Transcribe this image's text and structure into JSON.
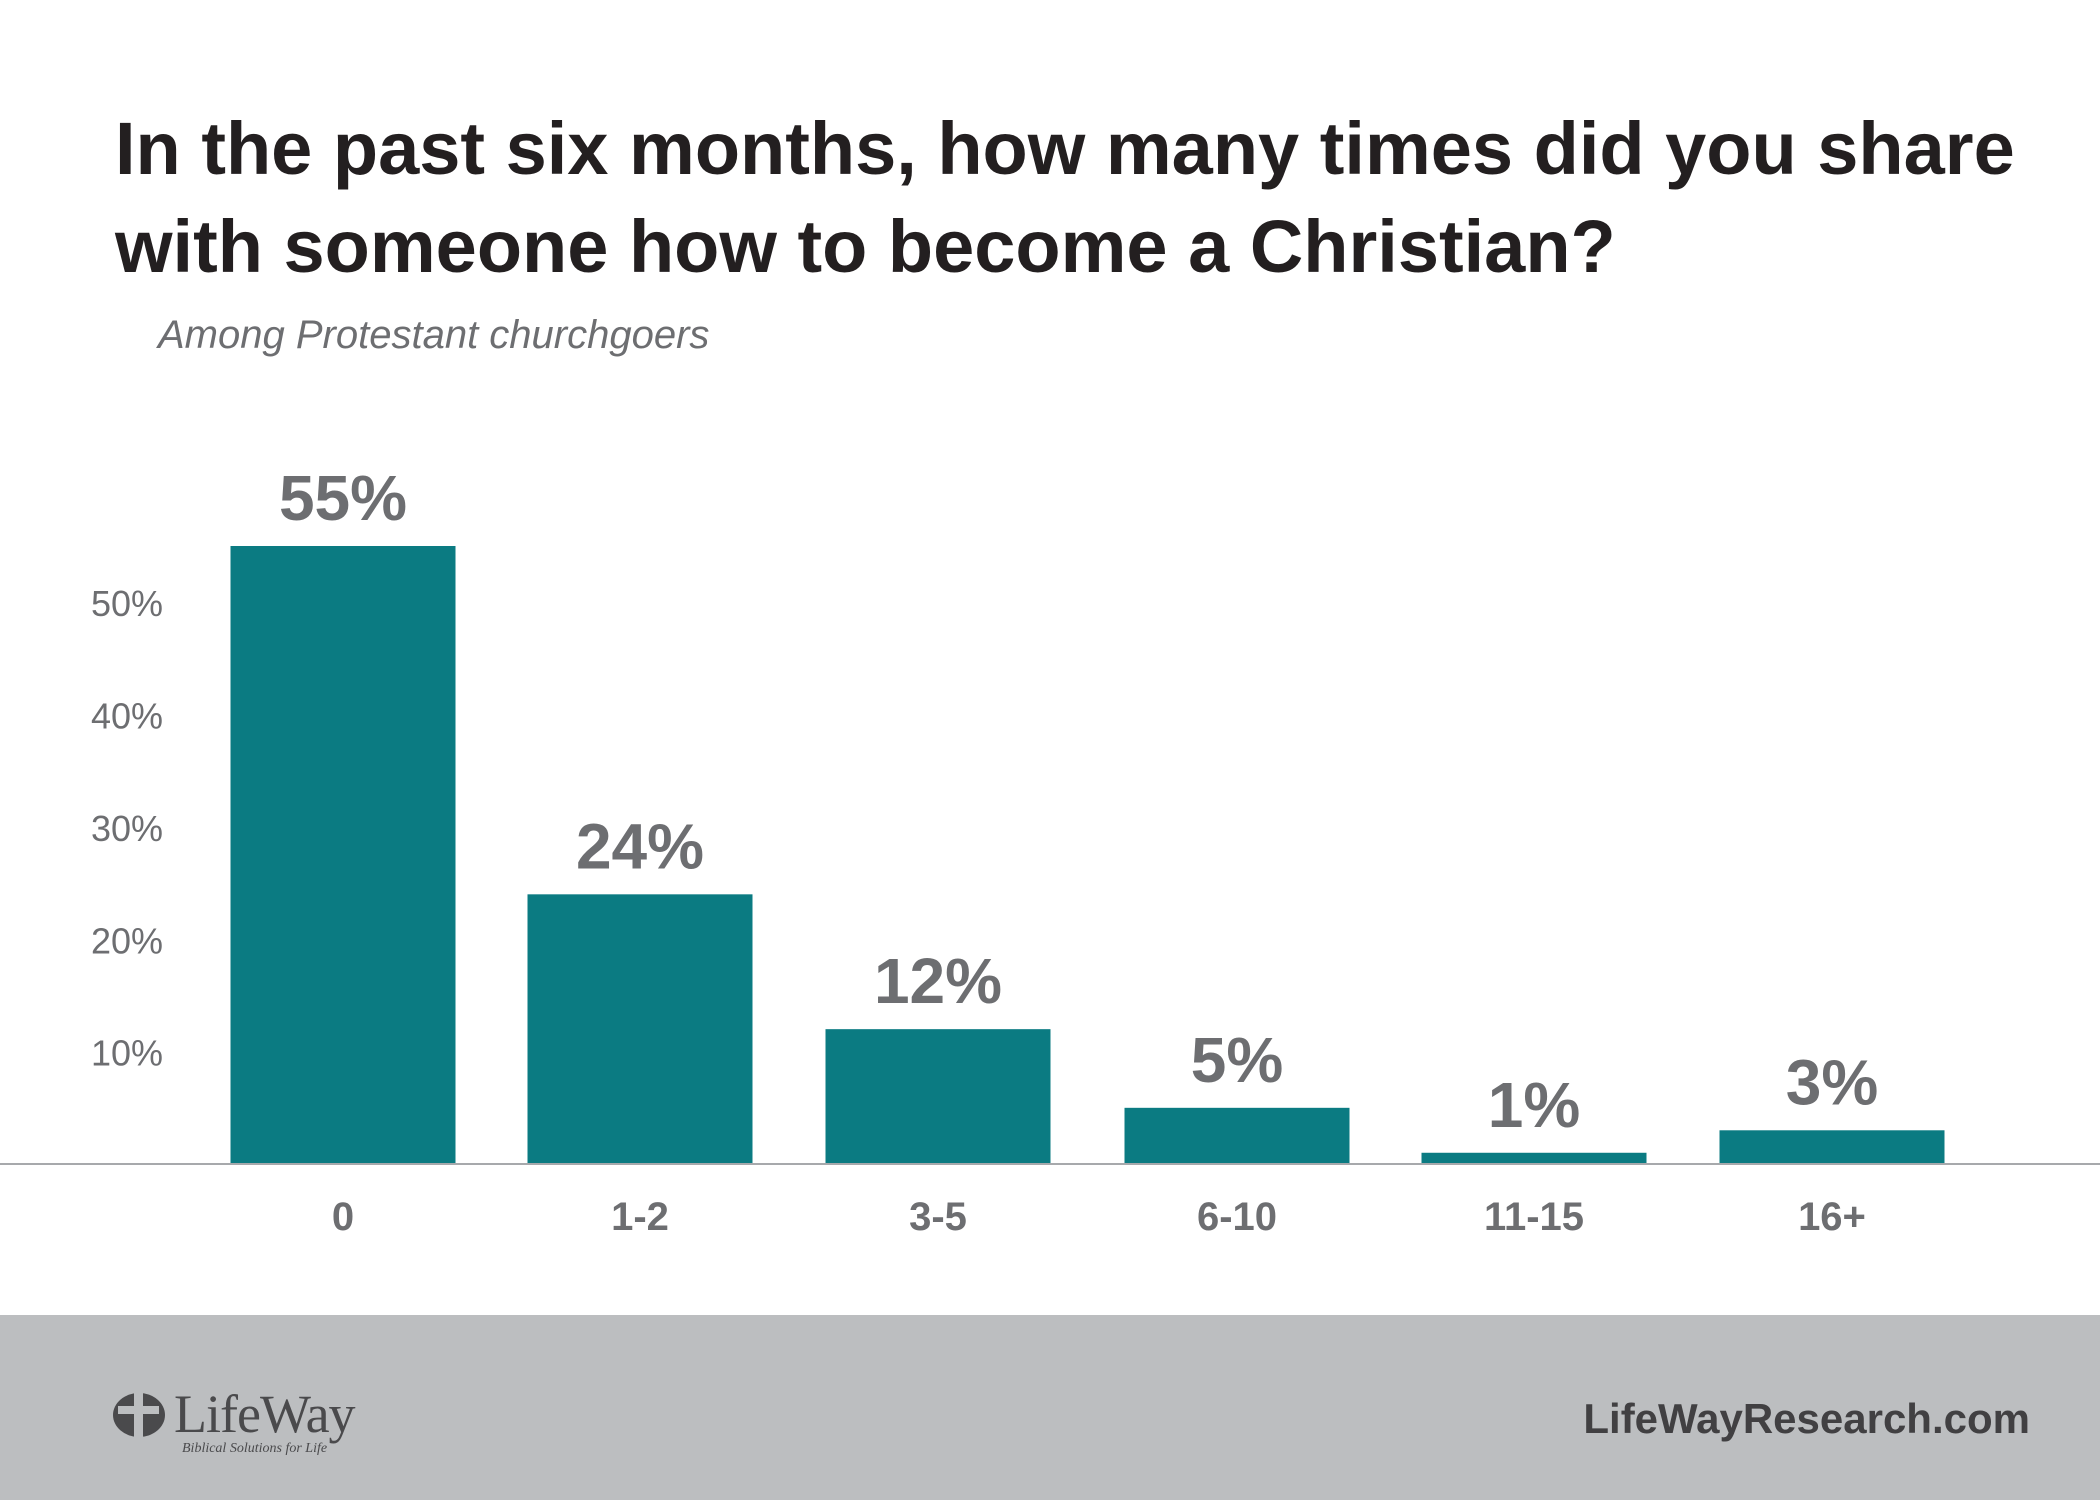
{
  "colors": {
    "bar": "#0b7b82",
    "title": "#231f20",
    "label": "#6d6e71",
    "footer": "#bcbec0"
  },
  "chart_data": {
    "type": "bar",
    "title": "In the past six months, how many times did you share with someone how to become a Christian?",
    "subtitle": "Among Protestant churchgoers",
    "categories": [
      "0",
      "1-2",
      "3-5",
      "6-10",
      "11-15",
      "16+"
    ],
    "values": [
      55,
      24,
      12,
      5,
      1,
      3
    ],
    "data_labels": [
      "55%",
      "24%",
      "12%",
      "5%",
      "1%",
      "3%"
    ],
    "y_ticks": [
      {
        "value": 10,
        "label": "10%"
      },
      {
        "value": 20,
        "label": "20%"
      },
      {
        "value": 30,
        "label": "30%"
      },
      {
        "value": 40,
        "label": "40%"
      },
      {
        "value": 50,
        "label": "50%"
      }
    ],
    "ylim": [
      0,
      55
    ],
    "xlabel": "",
    "ylabel": "",
    "grid": false
  },
  "footer": {
    "logo_name": "LifeWay",
    "logo_tagline": "Biblical Solutions for Life",
    "logo_icon": "lifeway-cross-icon",
    "site": "LifeWayResearch.com"
  }
}
